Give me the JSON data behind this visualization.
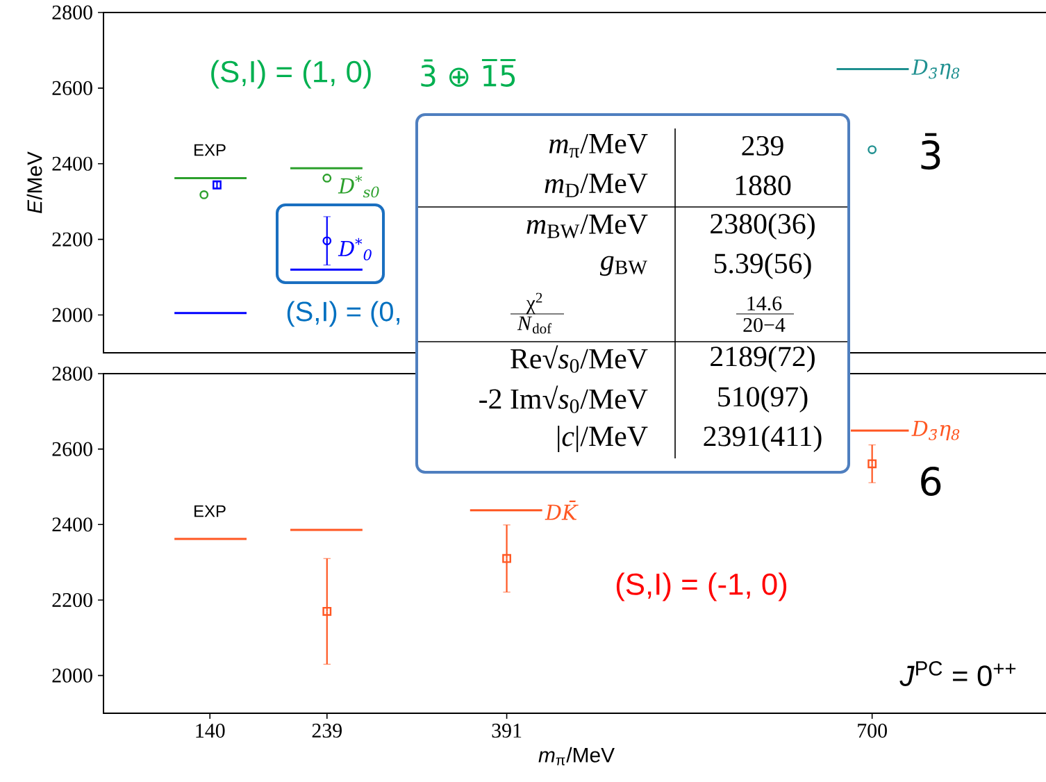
{
  "chart_data": [
    {
      "type": "line",
      "ylabel": "*E*/MeV",
      "xlim": [
        50,
        850
      ],
      "ylim": [
        1900,
        2800
      ],
      "yticks": [
        2000,
        2200,
        2400,
        2600,
        2800
      ],
      "tick_labels": "y",
      "series": [
        {
          "type": "line",
          "color": "#2ca02c",
          "x": [
            110,
            171
          ],
          "values": [
            2362,
            2362
          ]
        },
        {
          "type": "line",
          "color": "#0000ff",
          "x": [
            110,
            171
          ],
          "values": [
            2005,
            2005
          ]
        },
        {
          "type": "scatter",
          "color": "#2ca02c",
          "marker": "circle",
          "x": [
            135
          ],
          "values": [
            2318
          ]
        },
        {
          "type": "scatter",
          "color": "#0000ff",
          "marker": "square",
          "x": [
            146
          ],
          "values": [
            2344
          ],
          "errors": [
            8
          ]
        },
        {
          "type": "line",
          "color": "#2ca02c",
          "x": [
            208,
            269
          ],
          "values": [
            2388,
            2388
          ]
        },
        {
          "type": "scatter",
          "name": "D$^{*}$$_{s0}$",
          "color": "#2ca02c",
          "marker": "circle",
          "x": [
            239
          ],
          "values": [
            2362
          ]
        },
        {
          "type": "line",
          "color": "#0000ff",
          "x": [
            208,
            269
          ],
          "values": [
            2120,
            2120
          ]
        },
        {
          "type": "scatter",
          "name": "D$^{*}$$_{0}$",
          "color": "#0000ff",
          "marker": "circle",
          "x": [
            239
          ],
          "values": [
            2196
          ],
          "errors": [
            64
          ]
        },
        {
          "type": "line",
          "name": "D$_{3̄}$η$_{8}$",
          "color": "#1f9090",
          "x": [
            670,
            731
          ],
          "values": [
            2650,
            2650
          ]
        },
        {
          "type": "scatter",
          "color": "#1f9090",
          "marker": "circle",
          "x": [
            700
          ],
          "values": [
            2437
          ]
        }
      ],
      "annotations": [
        "EXP",
        "(S,I) = (1, 0)",
        "3̄ ⊕ 1̅5̅",
        "(S,I) = (0,",
        "3̄"
      ]
    },
    {
      "type": "line",
      "xlabel": "*m*$_{π}$/MeV",
      "xlim": [
        50,
        850
      ],
      "xticks": [
        140,
        239,
        391,
        700
      ],
      "ylim": [
        1900,
        2800
      ],
      "yticks": [
        2000,
        2200,
        2400,
        2600,
        2800
      ],
      "series": [
        {
          "type": "line",
          "color": "#ff5722",
          "x": [
            110,
            171
          ],
          "values": [
            2362,
            2362
          ]
        },
        {
          "type": "line",
          "color": "#ff5722",
          "x": [
            208,
            269
          ],
          "values": [
            2386,
            2386
          ]
        },
        {
          "type": "scatter",
          "color": "#ff5722",
          "marker": "square",
          "x": [
            239
          ],
          "values": [
            2170
          ],
          "errors": [
            140
          ]
        },
        {
          "type": "line",
          "name": "DK̄",
          "color": "#ff5722",
          "x": [
            360,
            421
          ],
          "values": [
            2438,
            2438
          ]
        },
        {
          "type": "scatter",
          "color": "#ff5722",
          "marker": "square",
          "x": [
            391
          ],
          "values": [
            2310
          ],
          "errors": [
            89
          ]
        },
        {
          "type": "line",
          "name": "D$_{3̄}$η$_{8}$",
          "color": "#ff5722",
          "x": [
            682,
            731
          ],
          "values": [
            2649,
            2649
          ]
        },
        {
          "type": "scatter",
          "color": "#ff5722",
          "marker": "square",
          "x": [
            700
          ],
          "values": [
            2561
          ],
          "errors": [
            50
          ]
        }
      ],
      "annotations": [
        "EXP",
        "6",
        "(S,I) = (-1, 0)",
        "*J*$^{PC}$ = 0$^{++}$"
      ]
    },
    {
      "type": "other",
      "annotations": [
        "*m*$_{π}$/MeV",
        "239",
        "*m*$_{D}$/MeV",
        "1880",
        "*m*$_{BW}$/MeV",
        "2380(36)",
        "*g*$_{BW}$",
        "5.39(56)",
        "χ$^{2}$",
        "14.6",
        "*N*$_{dof}$",
        "20−4",
        "Re√*s*$_{0}$/MeV",
        "2189(72)",
        "-2 Im√*s*$_{0}$/MeV",
        "510(97)",
        "|*c*|/MeV",
        "2391(411)"
      ]
    }
  ]
}
